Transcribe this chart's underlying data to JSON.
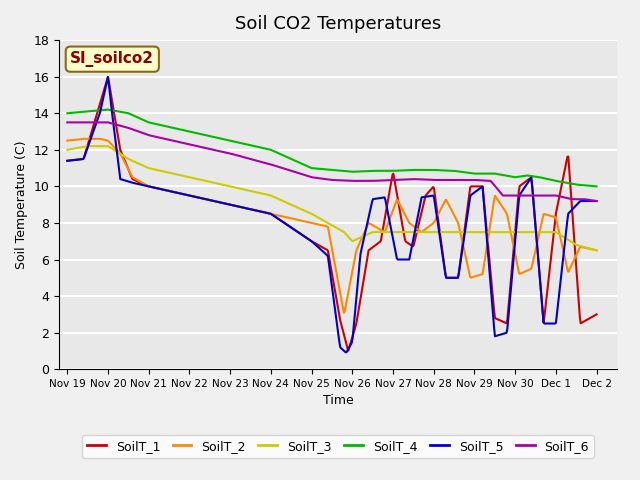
{
  "title": "Soil CO2 Temperatures",
  "xlabel": "Time",
  "ylabel": "Soil Temperature (C)",
  "ylim": [
    0,
    18
  ],
  "annotation": "SI_soilco2",
  "series_colors": {
    "SoilT_1": "#cc0000",
    "SoilT_2": "#ff8800",
    "SoilT_3": "#cccc00",
    "SoilT_4": "#00bb00",
    "SoilT_5": "#0000cc",
    "SoilT_6": "#aa00aa"
  },
  "plot_bg_color": "#e8e8e8",
  "fig_bg_color": "#f0f0f0",
  "tick_labels": [
    "Nov 19",
    "Nov 20",
    "Nov 21",
    "Nov 22",
    "Nov 23",
    "Nov 24",
    "Nov 25",
    "Nov 26",
    "Nov 27",
    "Nov 28",
    "Nov 29",
    "Nov 30",
    "Dec 1",
    "Dec 2"
  ]
}
